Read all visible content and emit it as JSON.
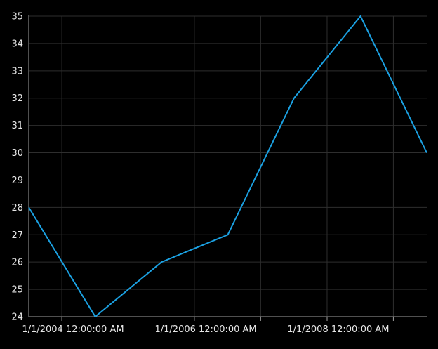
{
  "chart_data": {
    "type": "line",
    "x": [
      "2004-01-01",
      "2005-01-01",
      "2006-01-01",
      "2007-01-01",
      "2008-01-01",
      "2009-01-01",
      "2010-01-01"
    ],
    "series": [
      {
        "values": [
          28,
          24,
          26,
          27,
          32,
          35,
          30
        ]
      }
    ],
    "ylim": [
      24,
      35
    ],
    "xlim": [
      "2004-01-01",
      "2010-01-01"
    ],
    "yticks": [
      "24",
      "25",
      "26",
      "27",
      "28",
      "29",
      "30",
      "31",
      "32",
      "33",
      "34",
      "35"
    ],
    "xtick_labels": [
      {
        "date": "2004-01-01",
        "label": "1/1/2004 12:00:00 AM"
      },
      {
        "date": "2006-01-01",
        "label": "1/1/2006 12:00:00 AM"
      },
      {
        "date": "2008-01-01",
        "label": "1/1/2008 12:00:00 AM"
      }
    ],
    "grid": true,
    "colors": {
      "background": "#000000",
      "line": "#1ba1e2",
      "grid": "#2e2e2e",
      "axis": "#a0a0a0",
      "text": "#e6e6e6"
    }
  }
}
